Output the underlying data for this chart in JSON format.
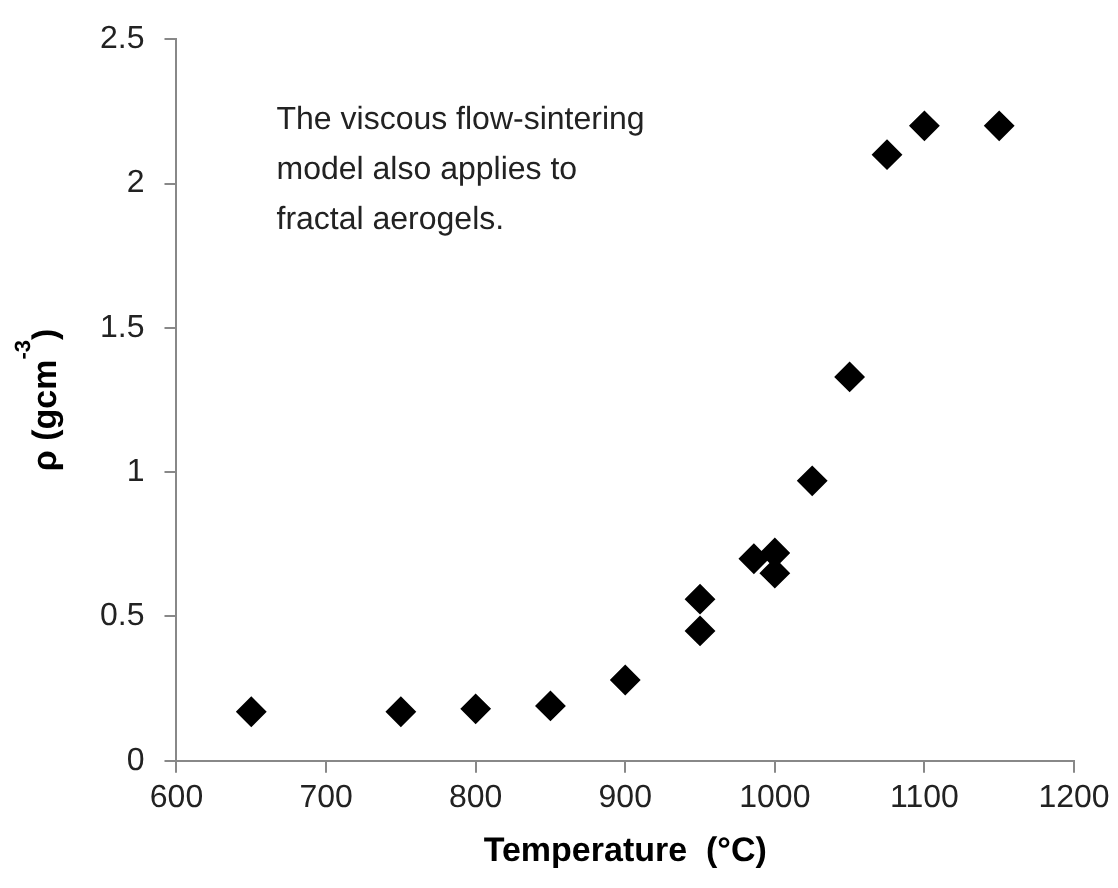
{
  "chart_data": {
    "type": "scatter",
    "xlabel": "Temperature  (°C)",
    "ylabel": "ρ (gcm$^{-3}$)",
    "annotations": [
      "The viscous flow-sintering\nmodel also applies to\nfractal aerogels."
    ],
    "series": [
      {
        "color": "#000000",
        "x": [
          650,
          750,
          800,
          850,
          900,
          950,
          950,
          986,
          1000,
          1000,
          1025,
          1050,
          1075,
          1100,
          1150
        ],
        "values": [
          0.17,
          0.17,
          0.18,
          0.19,
          0.28,
          0.45,
          0.56,
          0.7,
          0.72,
          0.65,
          0.97,
          1.33,
          2.1,
          2.2,
          2.2
        ]
      }
    ],
    "xlim": [
      600,
      1200
    ],
    "xticks": [
      600,
      700,
      800,
      900,
      1000,
      1100,
      1200
    ],
    "ylim": [
      0,
      2.5
    ],
    "yticks": [
      0,
      0.5,
      1,
      1.5,
      2,
      2.5
    ],
    "marker": "diamond",
    "grid": false,
    "legend": false
  }
}
